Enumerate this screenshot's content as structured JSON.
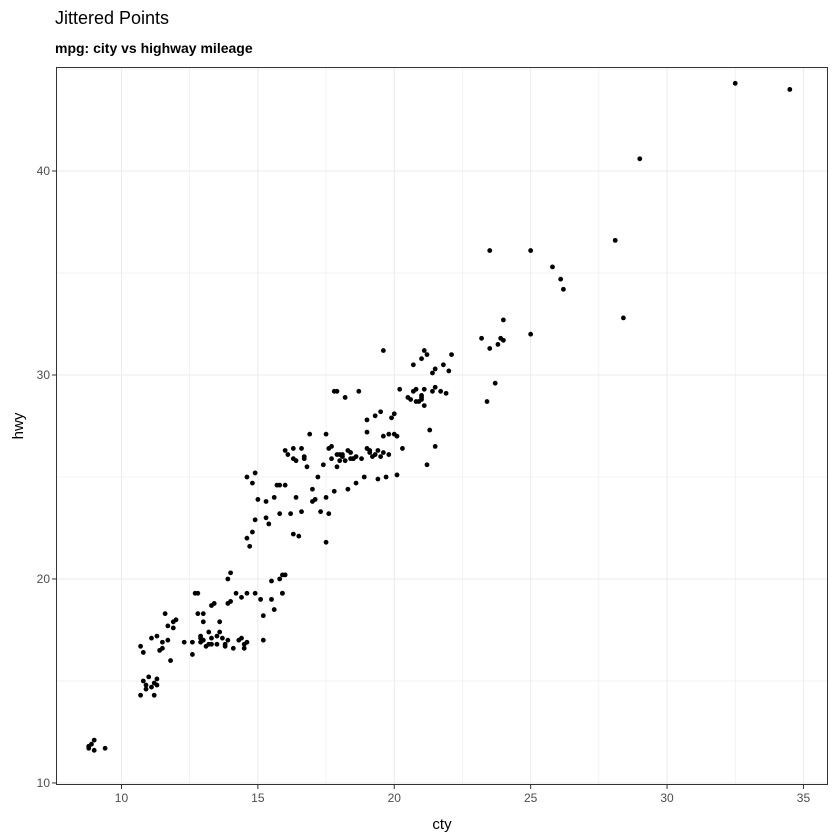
{
  "chart_data": {
    "type": "scatter",
    "title": "Jittered Points",
    "subtitle": "mpg: city vs highway mileage",
    "xlabel": "cty",
    "ylabel": "hwy",
    "xlim": [
      7.6,
      35.9
    ],
    "ylim": [
      9.9,
      45.1
    ],
    "xticks": [
      10,
      15,
      20,
      25,
      30,
      35
    ],
    "yticks": [
      10,
      20,
      30,
      40
    ],
    "grid": true,
    "point_color": "#000000",
    "points": [
      [
        8.8,
        11.7
      ],
      [
        8.9,
        11.9
      ],
      [
        9.0,
        12.1
      ],
      [
        9.0,
        11.6
      ],
      [
        8.8,
        11.8
      ],
      [
        9.4,
        11.7
      ],
      [
        10.7,
        14.3
      ],
      [
        10.8,
        15.0
      ],
      [
        10.9,
        14.8
      ],
      [
        11.0,
        15.2
      ],
      [
        11.1,
        14.7
      ],
      [
        11.2,
        14.9
      ],
      [
        11.3,
        14.8
      ],
      [
        11.3,
        15.1
      ],
      [
        11.2,
        14.3
      ],
      [
        10.9,
        14.6
      ],
      [
        10.7,
        16.7
      ],
      [
        10.8,
        16.4
      ],
      [
        11.1,
        17.1
      ],
      [
        11.3,
        17.2
      ],
      [
        11.5,
        16.9
      ],
      [
        11.4,
        16.5
      ],
      [
        11.5,
        16.6
      ],
      [
        11.7,
        17.0
      ],
      [
        11.6,
        18.3
      ],
      [
        11.9,
        17.9
      ],
      [
        11.7,
        17.7
      ],
      [
        11.8,
        16.0
      ],
      [
        11.9,
        17.6
      ],
      [
        12.0,
        18.0
      ],
      [
        12.3,
        16.9
      ],
      [
        12.6,
        16.3
      ],
      [
        12.6,
        16.9
      ],
      [
        12.7,
        19.3
      ],
      [
        12.8,
        19.3
      ],
      [
        12.8,
        18.3
      ],
      [
        12.9,
        17.1
      ],
      [
        12.9,
        17.2
      ],
      [
        13.0,
        17.9
      ],
      [
        13.0,
        18.3
      ],
      [
        12.9,
        16.9
      ],
      [
        13.0,
        17.0
      ],
      [
        13.1,
        16.7
      ],
      [
        13.2,
        16.8
      ],
      [
        13.3,
        17.1
      ],
      [
        13.3,
        18.7
      ],
      [
        13.2,
        17.4
      ],
      [
        13.3,
        16.8
      ],
      [
        13.4,
        18.8
      ],
      [
        13.5,
        17.2
      ],
      [
        13.5,
        16.8
      ],
      [
        13.6,
        17.9
      ],
      [
        13.6,
        17.4
      ],
      [
        13.7,
        17.1
      ],
      [
        13.8,
        16.8
      ],
      [
        13.8,
        16.7
      ],
      [
        13.9,
        18.8
      ],
      [
        13.9,
        17.0
      ],
      [
        13.9,
        20.0
      ],
      [
        14.0,
        18.9
      ],
      [
        14.0,
        20.3
      ],
      [
        14.1,
        16.6
      ],
      [
        14.2,
        19.3
      ],
      [
        14.3,
        17.0
      ],
      [
        14.4,
        19.1
      ],
      [
        14.4,
        17.1
      ],
      [
        14.5,
        16.8
      ],
      [
        14.5,
        16.6
      ],
      [
        14.6,
        16.9
      ],
      [
        14.6,
        19.3
      ],
      [
        14.7,
        21.6
      ],
      [
        14.6,
        22.0
      ],
      [
        14.8,
        22.3
      ],
      [
        14.6,
        25.0
      ],
      [
        14.8,
        24.7
      ],
      [
        14.9,
        25.2
      ],
      [
        14.9,
        22.9
      ],
      [
        14.9,
        19.3
      ],
      [
        15.0,
        23.9
      ],
      [
        15.1,
        19.0
      ],
      [
        15.2,
        18.2
      ],
      [
        15.2,
        17.0
      ],
      [
        15.3,
        23.0
      ],
      [
        15.4,
        22.7
      ],
      [
        15.3,
        23.8
      ],
      [
        15.5,
        19.9
      ],
      [
        15.5,
        19.0
      ],
      [
        15.6,
        18.5
      ],
      [
        15.6,
        24.0
      ],
      [
        15.7,
        24.6
      ],
      [
        15.8,
        24.6
      ],
      [
        15.8,
        23.2
      ],
      [
        15.8,
        20.0
      ],
      [
        15.9,
        20.2
      ],
      [
        15.9,
        19.3
      ],
      [
        15.9,
        19.3
      ],
      [
        16.0,
        20.2
      ],
      [
        16.0,
        24.6
      ],
      [
        16.0,
        26.3
      ],
      [
        16.1,
        26.1
      ],
      [
        16.2,
        23.2
      ],
      [
        16.3,
        26.4
      ],
      [
        16.3,
        25.9
      ],
      [
        16.3,
        22.2
      ],
      [
        16.4,
        25.8
      ],
      [
        16.4,
        24.0
      ],
      [
        16.5,
        22.1
      ],
      [
        16.6,
        23.3
      ],
      [
        16.7,
        25.9
      ],
      [
        16.6,
        26.4
      ],
      [
        16.8,
        25.5
      ],
      [
        16.7,
        26.0
      ],
      [
        16.9,
        27.1
      ],
      [
        17.0,
        24.4
      ],
      [
        17.0,
        23.8
      ],
      [
        17.1,
        23.9
      ],
      [
        17.2,
        25.0
      ],
      [
        17.3,
        23.3
      ],
      [
        17.4,
        25.6
      ],
      [
        17.5,
        27.1
      ],
      [
        17.5,
        21.8
      ],
      [
        17.5,
        24.0
      ],
      [
        17.6,
        26.4
      ],
      [
        17.6,
        23.2
      ],
      [
        17.7,
        26.5
      ],
      [
        17.7,
        25.9
      ],
      [
        17.8,
        24.3
      ],
      [
        17.8,
        29.2
      ],
      [
        17.9,
        25.5
      ],
      [
        17.9,
        29.2
      ],
      [
        17.9,
        26.1
      ],
      [
        18.0,
        26.1
      ],
      [
        18.0,
        25.8
      ],
      [
        18.1,
        26.0
      ],
      [
        18.1,
        26.1
      ],
      [
        18.2,
        28.9
      ],
      [
        18.2,
        25.8
      ],
      [
        18.3,
        26.3
      ],
      [
        18.3,
        24.4
      ],
      [
        18.4,
        25.9
      ],
      [
        18.4,
        26.2
      ],
      [
        18.5,
        25.9
      ],
      [
        18.5,
        25.9
      ],
      [
        18.6,
        26.0
      ],
      [
        18.6,
        24.7
      ],
      [
        18.7,
        29.2
      ],
      [
        18.8,
        25.9
      ],
      [
        18.9,
        25.0
      ],
      [
        19.0,
        27.2
      ],
      [
        19.0,
        26.4
      ],
      [
        19.0,
        27.8
      ],
      [
        19.1,
        26.3
      ],
      [
        19.1,
        26.2
      ],
      [
        19.2,
        26.0
      ],
      [
        19.3,
        26.1
      ],
      [
        19.3,
        28.0
      ],
      [
        19.4,
        24.9
      ],
      [
        19.4,
        26.3
      ],
      [
        19.5,
        28.2
      ],
      [
        19.5,
        26.0
      ],
      [
        19.6,
        27.0
      ],
      [
        19.6,
        26.2
      ],
      [
        19.6,
        31.2
      ],
      [
        19.7,
        25.0
      ],
      [
        19.8,
        27.1
      ],
      [
        19.8,
        26.1
      ],
      [
        19.9,
        27.9
      ],
      [
        20.0,
        28.1
      ],
      [
        20.0,
        27.1
      ],
      [
        20.1,
        27.0
      ],
      [
        20.1,
        25.1
      ],
      [
        20.2,
        29.3
      ],
      [
        20.3,
        26.4
      ],
      [
        20.5,
        28.9
      ],
      [
        20.6,
        28.8
      ],
      [
        20.7,
        30.5
      ],
      [
        20.7,
        29.2
      ],
      [
        20.8,
        29.3
      ],
      [
        20.8,
        28.7
      ],
      [
        20.9,
        28.7
      ],
      [
        21.0,
        29.0
      ],
      [
        21.0,
        28.8
      ],
      [
        21.0,
        28.9
      ],
      [
        21.0,
        30.8
      ],
      [
        21.1,
        31.2
      ],
      [
        21.1,
        28.5
      ],
      [
        21.2,
        31.0
      ],
      [
        21.1,
        29.3
      ],
      [
        21.2,
        25.6
      ],
      [
        21.3,
        27.3
      ],
      [
        21.4,
        29.2
      ],
      [
        21.4,
        30.1
      ],
      [
        21.5,
        29.4
      ],
      [
        21.5,
        30.3
      ],
      [
        21.5,
        26.5
      ],
      [
        21.7,
        29.2
      ],
      [
        21.8,
        30.5
      ],
      [
        21.9,
        29.1
      ],
      [
        22.0,
        30.2
      ],
      [
        22.1,
        31.0
      ],
      [
        23.2,
        31.8
      ],
      [
        23.4,
        28.7
      ],
      [
        23.5,
        31.3
      ],
      [
        23.5,
        36.1
      ],
      [
        23.7,
        29.6
      ],
      [
        23.8,
        31.5
      ],
      [
        23.9,
        31.8
      ],
      [
        24.0,
        31.7
      ],
      [
        24.0,
        32.7
      ],
      [
        25.0,
        32.0
      ],
      [
        25.0,
        36.1
      ],
      [
        25.8,
        35.3
      ],
      [
        26.1,
        34.7
      ],
      [
        26.2,
        34.2
      ],
      [
        28.1,
        36.6
      ],
      [
        28.4,
        32.8
      ],
      [
        29.0,
        40.6
      ],
      [
        32.5,
        44.3
      ],
      [
        34.5,
        44.0
      ]
    ]
  }
}
